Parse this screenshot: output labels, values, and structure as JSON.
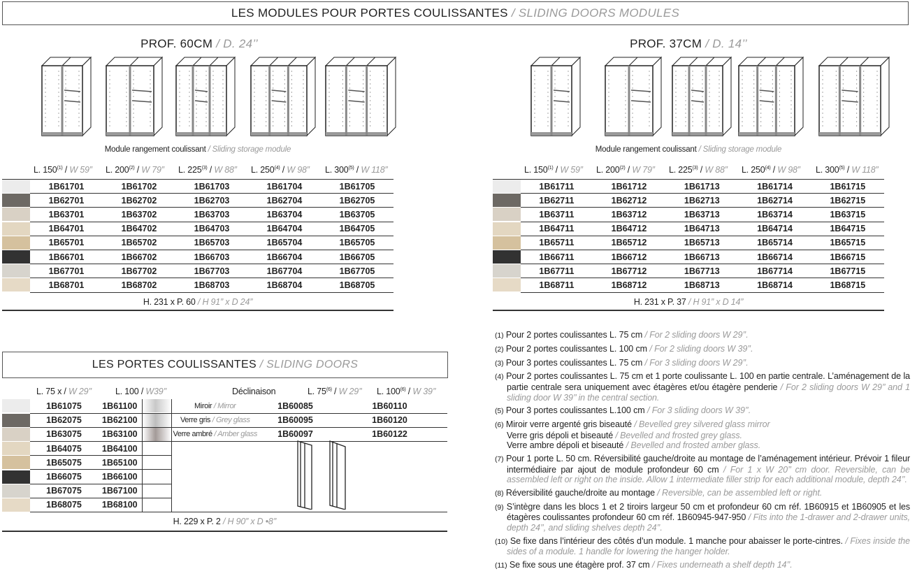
{
  "title": {
    "fr": "LES MODULES POUR PORTES COULISSANTES",
    "en": "/ SLIDING DOORS MODULES"
  },
  "modules": [
    {
      "section_fr": "PROF. 60CM",
      "section_en": "/ D. 24’’",
      "caption_fr": "Module rangement coulissant",
      "caption_en": "/ Sliding storage module",
      "headers": [
        {
          "fr": "L. 150",
          "sup": "(1)",
          "en": "W 59”"
        },
        {
          "fr": "L. 200",
          "sup": "(2)",
          "en": "W 79”"
        },
        {
          "fr": "L. 225",
          "sup": "(3)",
          "en": "W 88”"
        },
        {
          "fr": "L. 250",
          "sup": "(4)",
          "en": "W 98”"
        },
        {
          "fr": "L. 300",
          "sup": "(5)",
          "en": "W 118”"
        }
      ],
      "rows": [
        [
          "1B61701",
          "1B61702",
          "1B61703",
          "1B61704",
          "1B61705"
        ],
        [
          "1B62701",
          "1B62702",
          "1B62703",
          "1B62704",
          "1B62705"
        ],
        [
          "1B63701",
          "1B63702",
          "1B63703",
          "1B63704",
          "1B63705"
        ],
        [
          "1B64701",
          "1B64702",
          "1B64703",
          "1B64704",
          "1B64705"
        ],
        [
          "1B65701",
          "1B65702",
          "1B65703",
          "1B65704",
          "1B65705"
        ],
        [
          "1B66701",
          "1B66702",
          "1B66703",
          "1B66704",
          "1B66705"
        ],
        [
          "1B67701",
          "1B67702",
          "1B67703",
          "1B67704",
          "1B67705"
        ],
        [
          "1B68701",
          "1B68702",
          "1B68703",
          "1B68704",
          "1B68705"
        ]
      ],
      "footer_fr": "H. 231 x P. 60",
      "footer_en": "/ H 91” x D 24”"
    },
    {
      "section_fr": "PROF. 37CM",
      "section_en": "/ D. 14’’",
      "caption_fr": "Module rangement coulissant",
      "caption_en": "/ Sliding storage module",
      "headers": [
        {
          "fr": "L. 150",
          "sup": "(1)",
          "en": "W 59”"
        },
        {
          "fr": "L. 200",
          "sup": "(2)",
          "en": "W 79”"
        },
        {
          "fr": "L. 225",
          "sup": "(3)",
          "en": "W 88”"
        },
        {
          "fr": "L. 250",
          "sup": "(4)",
          "en": "W 98”"
        },
        {
          "fr": "L. 300",
          "sup": "(5)",
          "en": "W 118”"
        }
      ],
      "rows": [
        [
          "1B61711",
          "1B61712",
          "1B61713",
          "1B61714",
          "1B61715"
        ],
        [
          "1B62711",
          "1B62712",
          "1B62713",
          "1B62714",
          "1B62715"
        ],
        [
          "1B63711",
          "1B63712",
          "1B63713",
          "1B63714",
          "1B63715"
        ],
        [
          "1B64711",
          "1B64712",
          "1B64713",
          "1B64714",
          "1B64715"
        ],
        [
          "1B65711",
          "1B65712",
          "1B65713",
          "1B65714",
          "1B65715"
        ],
        [
          "1B66711",
          "1B66712",
          "1B66713",
          "1B66714",
          "1B66715"
        ],
        [
          "1B67711",
          "1B67712",
          "1B67713",
          "1B67714",
          "1B67715"
        ],
        [
          "1B68711",
          "1B68712",
          "1B68713",
          "1B68714",
          "1B68715"
        ]
      ],
      "footer_fr": "H. 231 x P. 37",
      "footer_en": "/ H 91” x D 14”"
    }
  ],
  "finish_colors": [
    "#ececec",
    "#6d6964",
    "#d9d1c5",
    "#e3d7c1",
    "#d5c19e",
    "#323232",
    "#d7d4cd",
    "#e6dac6"
  ],
  "doors": {
    "title_fr": "LES PORTES COULISSANTES",
    "title_en": "/ SLIDING DOORS",
    "headers": [
      {
        "fr": "L. 75 x",
        "en": "W 29’’"
      },
      {
        "fr": "L. 100",
        "en": "W39’’"
      }
    ],
    "decl_header": "Déclinaison",
    "glass_headers": [
      {
        "fr": "L. 75",
        "sup": "(6)",
        "en": "W 29’’"
      },
      {
        "fr": "L. 100",
        "sup": "(6)",
        "en": "W 39’’"
      }
    ],
    "rows": [
      [
        "1B61075",
        "1B61100"
      ],
      [
        "1B62075",
        "1B62100"
      ],
      [
        "1B63075",
        "1B63100"
      ],
      [
        "1B64075",
        "1B64100"
      ],
      [
        "1B65075",
        "1B65100"
      ],
      [
        "1B66075",
        "1B66100"
      ],
      [
        "1B67075",
        "1B67100"
      ],
      [
        "1B68075",
        "1B68100"
      ]
    ],
    "glass": [
      {
        "fr": "Miroir",
        "en": "/ Mirror",
        "codes": [
          "1B60085",
          "1B60110"
        ],
        "color": "#c8c8c8"
      },
      {
        "fr": "Verre gris",
        "en": "/ Grey glass",
        "codes": [
          "1B60095",
          "1B60120"
        ],
        "color": "#bdbdbd"
      },
      {
        "fr": "Verre ambré",
        "en": "/ Amber glass",
        "codes": [
          "1B60097",
          "1B60122"
        ],
        "color": "#a39a98"
      }
    ],
    "footer_fr": "H. 229 x P. 2",
    "footer_en": "/ H 90” x D •8’’"
  },
  "notes": [
    {
      "num": "(1)",
      "fr": "Pour 2 portes coulissantes L. 75 cm",
      "en": "/ For 2 sliding doors W 29’’."
    },
    {
      "num": "(2)",
      "fr": "Pour 2 portes coulissantes L. 100 cm",
      "en": "/ For 2 sliding doors W 39’’."
    },
    {
      "num": "(3)",
      "fr": "Pour 3 portes coulissantes L. 75 cm",
      "en": "/ For 3 sliding doors W 29’’."
    },
    {
      "num": "(4)",
      "fr": "Pour 2 portes coulissantes L. 75 cm et 1 porte coulissante L. 100 en partie centrale. L’aménagement de la partie centrale sera uniquement avec étagères et/ou étagère penderie",
      "en": "/ For 2 sliding doors W 29’’ and 1 sliding door W 39’’ in the central section."
    },
    {
      "num": "(5)",
      "fr": "Pour 3 portes coulissantes L.100 cm",
      "en": "/ For 3 sliding doors W 39’’."
    },
    {
      "num": "(6)",
      "fr": "Miroir verre argenté gris biseauté",
      "en": "/ Bevelled grey silvered glass mirror",
      "extra": [
        {
          "fr": "Verre gris dépoli et biseauté",
          "en": "/ Bevelled and frosted grey glass."
        },
        {
          "fr": "Verre ambre dépoli et biseauté",
          "en": "/ Bevelled and frosted amber glass."
        }
      ]
    },
    {
      "num": "(7)",
      "fr": "Pour 1 porte L. 50 cm. Réversibilité gauche/droite au montage de l’aménagement intérieur. Prévoir 1 fileur intermédiaire par ajout de module profondeur 60 cm",
      "en": "/ For 1 x W 20’’ cm door. Reversible, can be assembled left or right on the inside. Allow 1 intermediate filler strip for each additional module, depth 24’’."
    },
    {
      "num": "(8)",
      "fr": "Réversibilité gauche/droite au montage",
      "en": "/ Reversible, can be assembled left or right."
    },
    {
      "num": "(9)",
      "fr": "S’intègre dans les blocs 1 et 2 tiroirs largeur 50 cm et profondeur 60 cm réf. 1B60915 et 1B60905 et les étagères coulissantes profondeur 60 cm réf. 1B60945-947-950",
      "en": "/ Fits into the 1-drawer and 2-drawer units, depth 24’’, and sliding shelves depth 24’’."
    },
    {
      "num": "(10)",
      "fr": "Se fixe dans l’intérieur des côtés d’un module. 1 manche pour abaisser le porte-cintres.",
      "en": "/ Fixes inside the sides of a module. 1 handle for lowering the hanger holder."
    },
    {
      "num": "(11)",
      "fr": "Se fixe sous une étagère prof. 37 cm",
      "en": "/ Fixes underneath a shelf depth 14’’."
    }
  ]
}
